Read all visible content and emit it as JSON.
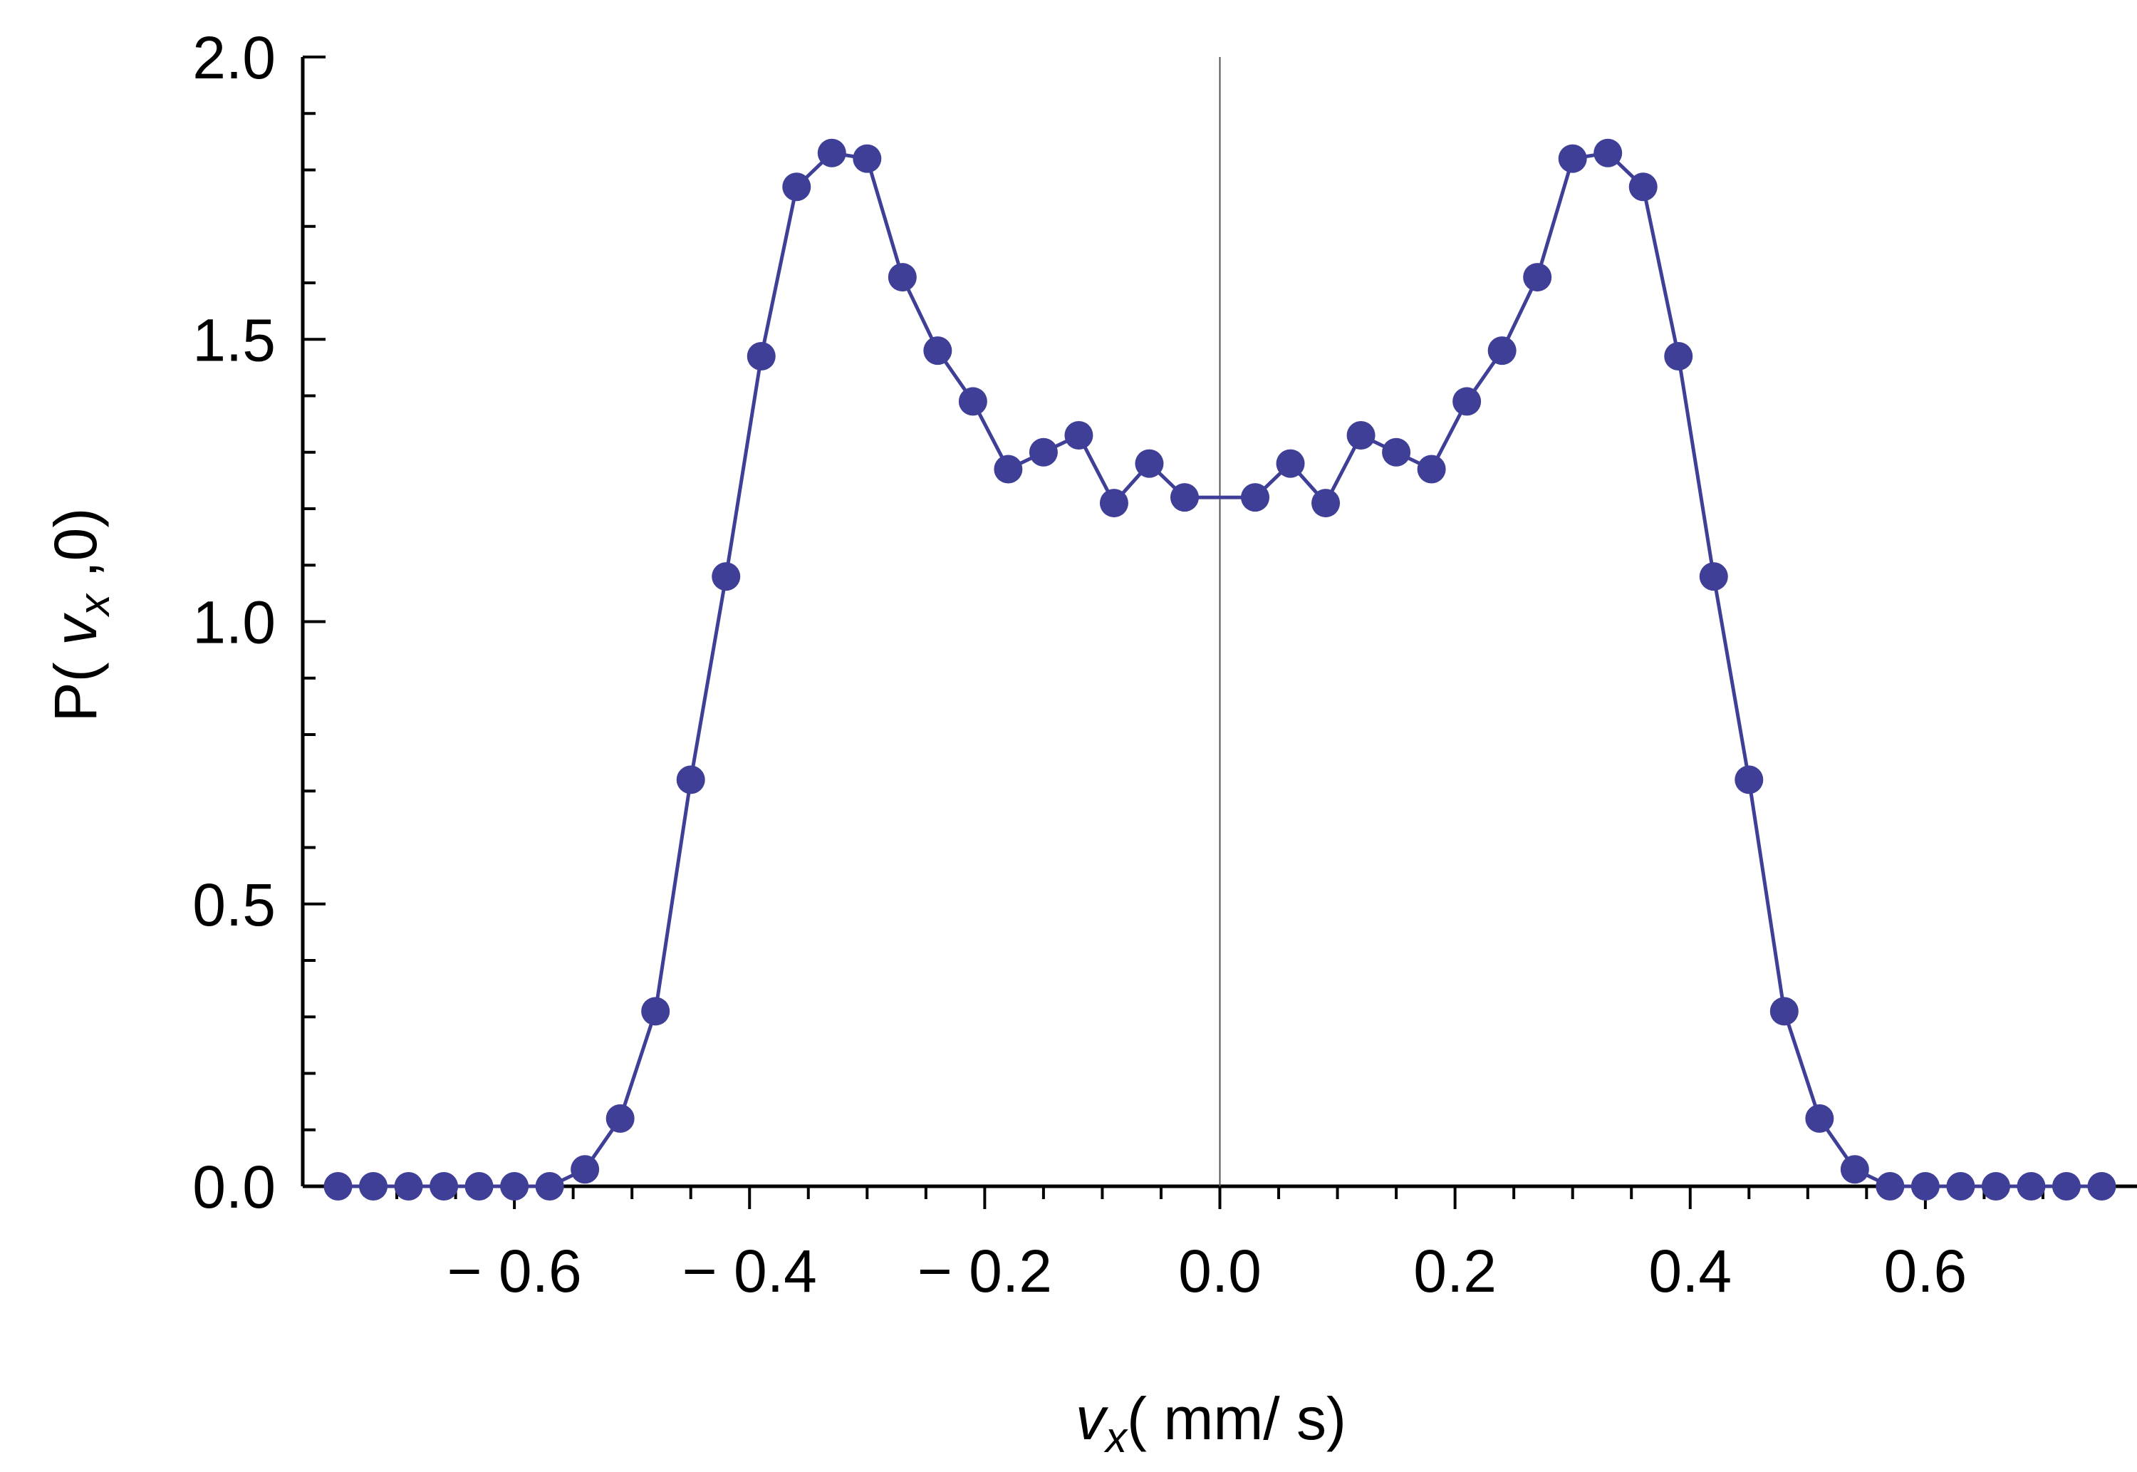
{
  "chart_data": {
    "type": "line",
    "title": "",
    "xlabel": {
      "var": "v",
      "sub": "x",
      "units": "( mm/ s)"
    },
    "ylabel": {
      "prefix": "P( ",
      "var": "v",
      "sub": "x",
      "suffix": " ,0)"
    },
    "xlim": [
      -0.78,
      0.78
    ],
    "ylim": [
      0.0,
      2.0
    ],
    "x_ticks": [
      -0.6,
      -0.4,
      -0.2,
      0.0,
      0.2,
      0.4,
      0.6
    ],
    "x_tick_labels": [
      "− 0.6",
      "− 0.4",
      "− 0.2",
      "0.0",
      "0.2",
      "0.4",
      "0.6"
    ],
    "y_ticks": [
      0.0,
      0.5,
      1.0,
      1.5,
      2.0
    ],
    "y_tick_labels": [
      "0.0",
      "0.5",
      "1.0",
      "1.5",
      "2.0"
    ],
    "grid": false,
    "marker": "filled-circle",
    "color": "#3f3f98",
    "series": [
      {
        "x": [
          -0.75,
          -0.72,
          -0.69,
          -0.66,
          -0.63,
          -0.6,
          -0.57,
          -0.54,
          -0.51,
          -0.48,
          -0.45,
          -0.42,
          -0.39,
          -0.36,
          -0.33,
          -0.3,
          -0.27,
          -0.24,
          -0.21,
          -0.18,
          -0.15,
          -0.12,
          -0.09,
          -0.06,
          -0.03,
          0.03,
          0.06,
          0.09,
          0.12,
          0.15,
          0.18,
          0.21,
          0.24,
          0.27,
          0.3,
          0.33,
          0.36,
          0.39,
          0.42,
          0.45,
          0.48,
          0.51,
          0.54,
          0.57,
          0.6,
          0.63,
          0.66,
          0.69,
          0.72,
          0.75
        ],
        "y": [
          0.0,
          0.0,
          0.0,
          0.0,
          0.0,
          0.0,
          0.0,
          0.03,
          0.12,
          0.31,
          0.72,
          1.08,
          1.47,
          1.77,
          1.83,
          1.82,
          1.61,
          1.48,
          1.39,
          1.27,
          1.3,
          1.33,
          1.21,
          1.28,
          1.22,
          1.22,
          1.28,
          1.21,
          1.33,
          1.3,
          1.27,
          1.39,
          1.48,
          1.61,
          1.82,
          1.83,
          1.77,
          1.47,
          1.08,
          0.72,
          0.31,
          0.12,
          0.03,
          0.0,
          0.0,
          0.0,
          0.0,
          0.0,
          0.0,
          0.0
        ]
      }
    ]
  }
}
